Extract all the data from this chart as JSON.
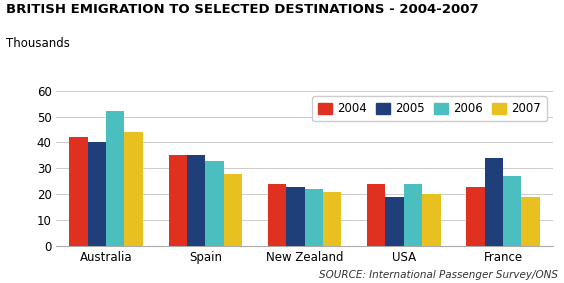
{
  "title": "BRITISH EMIGRATION TO SELECTED DESTINATIONS - 2004-2007",
  "ylabel": "Thousands",
  "source": "SOURCE: International Passenger Survey/ONS",
  "categories": [
    "Australia",
    "Spain",
    "New Zealand",
    "USA",
    "France"
  ],
  "years": [
    "2004",
    "2005",
    "2006",
    "2007"
  ],
  "colors": [
    "#e03020",
    "#1e3f7a",
    "#4bbfbf",
    "#e8c020"
  ],
  "values": {
    "2004": [
      42,
      35,
      24,
      24,
      23
    ],
    "2005": [
      40,
      35,
      23,
      19,
      34
    ],
    "2006": [
      52,
      33,
      22,
      24,
      27
    ],
    "2007": [
      44,
      28,
      21,
      20,
      19
    ]
  },
  "ylim": [
    0,
    60
  ],
  "yticks": [
    0,
    10,
    20,
    30,
    40,
    50,
    60
  ],
  "bar_width": 0.185,
  "background_color": "#ffffff",
  "plot_bg_color": "#ffffff",
  "grid_color": "#cccccc",
  "title_fontsize": 9.5,
  "label_fontsize": 8.5,
  "tick_fontsize": 8.5,
  "source_fontsize": 7.5
}
